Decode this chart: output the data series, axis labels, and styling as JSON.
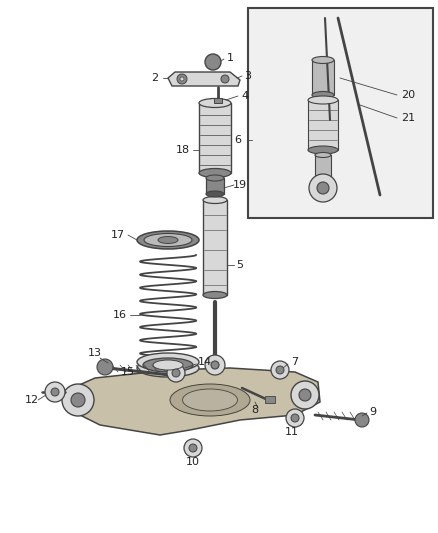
{
  "bg_color": "#ffffff",
  "line_color": "#444444",
  "part_fill": "#d8d8d8",
  "dark_fill": "#888888",
  "mid_fill": "#bbbbbb",
  "inset_bg": "#f0f0f0",
  "label_color": "#222222",
  "figsize": [
    4.38,
    5.33
  ],
  "dpi": 100
}
